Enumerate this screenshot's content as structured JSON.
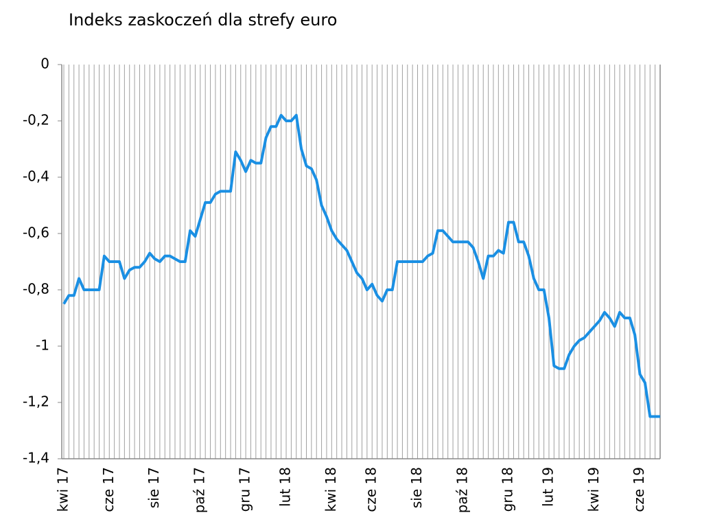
{
  "chart_data": {
    "type": "line",
    "title": "Indeks zaskoczeń dla strefy euro",
    "categories": [
      "kwi 17",
      null,
      null,
      null,
      null,
      null,
      null,
      null,
      null,
      "cze 17",
      null,
      null,
      null,
      null,
      null,
      null,
      null,
      null,
      "sie 17",
      null,
      null,
      null,
      null,
      null,
      null,
      null,
      null,
      "paź 17",
      null,
      null,
      null,
      null,
      null,
      null,
      null,
      null,
      "gru 17",
      null,
      null,
      null,
      null,
      null,
      null,
      null,
      "lut 18",
      null,
      null,
      null,
      null,
      null,
      null,
      null,
      null,
      "kwi 18",
      null,
      null,
      null,
      null,
      null,
      null,
      null,
      "cze 18",
      null,
      null,
      null,
      null,
      null,
      null,
      null,
      null,
      "sie 18",
      null,
      null,
      null,
      null,
      null,
      null,
      null,
      null,
      "paź 18",
      null,
      null,
      null,
      null,
      null,
      null,
      null,
      null,
      "gru 18",
      null,
      null,
      null,
      null,
      null,
      null,
      null,
      "lut 19",
      null,
      null,
      null,
      null,
      null,
      null,
      null,
      null,
      "kwi 19",
      null,
      null,
      null,
      null,
      null,
      null,
      null,
      null,
      "cze 19",
      null,
      null,
      null,
      null
    ],
    "series": [
      {
        "name": "Indeks zaskoczeń",
        "color": "#1a8fe3",
        "values": [
          -0.85,
          -0.82,
          -0.82,
          -0.76,
          -0.8,
          -0.8,
          -0.8,
          -0.8,
          -0.68,
          -0.7,
          -0.7,
          -0.7,
          -0.76,
          -0.73,
          -0.72,
          -0.72,
          -0.7,
          -0.67,
          -0.69,
          -0.7,
          -0.68,
          -0.68,
          -0.69,
          -0.7,
          -0.7,
          -0.59,
          -0.61,
          -0.55,
          -0.49,
          -0.49,
          -0.46,
          -0.45,
          -0.45,
          -0.45,
          -0.31,
          -0.34,
          -0.38,
          -0.34,
          -0.35,
          -0.35,
          -0.26,
          -0.22,
          -0.22,
          -0.18,
          -0.2,
          -0.2,
          -0.18,
          -0.3,
          -0.36,
          -0.37,
          -0.41,
          -0.5,
          -0.54,
          -0.59,
          -0.62,
          -0.64,
          -0.66,
          -0.7,
          -0.74,
          -0.76,
          -0.8,
          -0.78,
          -0.82,
          -0.84,
          -0.8,
          -0.8,
          -0.7,
          -0.7,
          -0.7,
          -0.7,
          -0.7,
          -0.7,
          -0.68,
          -0.67,
          -0.59,
          -0.59,
          -0.61,
          -0.63,
          -0.63,
          -0.63,
          -0.63,
          -0.65,
          -0.7,
          -0.76,
          -0.68,
          -0.68,
          -0.66,
          -0.67,
          -0.56,
          -0.56,
          -0.63,
          -0.63,
          -0.68,
          -0.76,
          -0.8,
          -0.8,
          -0.9,
          -1.07,
          -1.08,
          -1.08,
          -1.03,
          -1.0,
          -0.98,
          -0.97,
          -0.95,
          -0.93,
          -0.91,
          -0.88,
          -0.9,
          -0.93,
          -0.88,
          -0.9,
          -0.9,
          -0.96,
          -1.1,
          -1.13,
          -1.25,
          -1.25,
          -1.25
        ]
      }
    ],
    "ylim": [
      -1.4,
      0
    ],
    "yticks": [
      {
        "value": -1.4,
        "label": "-1,4"
      },
      {
        "value": -1.2,
        "label": "-1,2"
      },
      -1,
      {
        "value": -0.8,
        "label": "-0,8"
      },
      {
        "value": -0.6,
        "label": "-0,6"
      },
      {
        "value": -0.4,
        "label": "-0,4"
      },
      {
        "value": -0.2,
        "label": "-0,2"
      },
      0
    ],
    "grid": "x"
  }
}
